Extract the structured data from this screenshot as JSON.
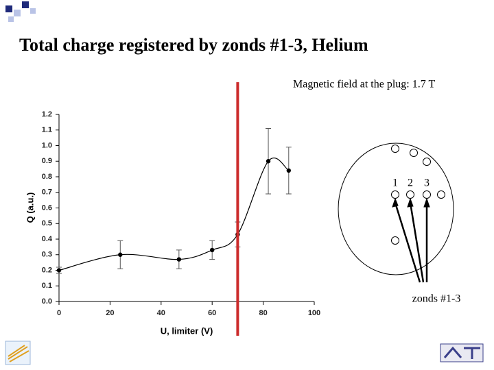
{
  "chart_data": {
    "type": "scatter",
    "title": "Total charge registered by zonds #1-3, Helium",
    "annotation": "Magnetic field at the plug: 1.7 T",
    "x_label": "U, limiter (V)",
    "y_label": "Q (a.u.)",
    "x": [
      0,
      24,
      47,
      60,
      70,
      82,
      90
    ],
    "values": [
      0.2,
      0.3,
      0.27,
      0.33,
      0.43,
      0.9,
      0.84
    ],
    "errors": [
      0.02,
      0.09,
      0.06,
      0.06,
      0.08,
      0.21,
      0.15
    ],
    "color": "#000000",
    "smooth_line": true,
    "xlim": [
      0,
      100
    ],
    "xticks": [
      0,
      20,
      40,
      60,
      80,
      100
    ],
    "ylim": [
      0,
      1.2
    ],
    "yticks": [
      {
        "value": 0,
        "label": "0.0"
      },
      0.1,
      0.2,
      0.3,
      0.4,
      0.5,
      0.6,
      0.7,
      0.8,
      0.9,
      {
        "value": 1,
        "label": "1.0"
      },
      1.1,
      1.2
    ],
    "marker_line": {
      "x": 70,
      "color": "#cc2b2b"
    }
  },
  "diagram": {
    "labels": [
      "1",
      "2",
      "3"
    ],
    "caption": "zonds #1-3"
  }
}
